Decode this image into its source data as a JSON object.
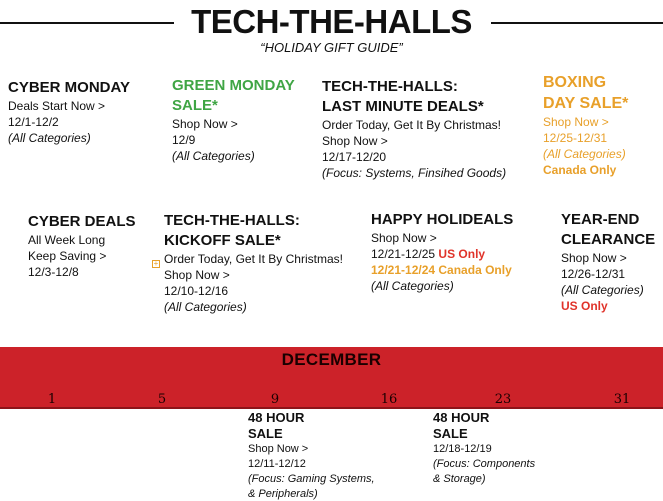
{
  "header": {
    "title": "TECH-THE-HALLS",
    "subtitle": "“HOLIDAY GIFT GUIDE”"
  },
  "colors": {
    "green": "#3fa544",
    "orange": "#e8a02a",
    "red": "#e0332a",
    "band": "#cc2229"
  },
  "promos": {
    "cyber_monday": {
      "title": "CYBER MONDAY",
      "line1": "Deals Start Now >",
      "dates": "12/1-12/2",
      "note": "(All Categories)"
    },
    "green_monday": {
      "title1": "GREEN MONDAY",
      "title2": "SALE*",
      "cta": "Shop Now >",
      "dates": "12/9",
      "note": "(All Categories)"
    },
    "last_minute": {
      "title1": "TECH-THE-HALLS:",
      "title2": "LAST MINUTE DEALS*",
      "line1": "Order Today, Get It By Christmas!",
      "cta": "Shop Now >",
      "dates": "12/17-12/20",
      "note": "(Focus: Systems, Finsihed Goods)"
    },
    "boxing_day": {
      "title1": "BOXING",
      "title2": "DAY SALE*",
      "cta": "Shop Now >",
      "dates": "12/25-12/31",
      "note": "(All Categories)",
      "region": "Canada Only"
    },
    "cyber_deals": {
      "title": "CYBER DEALS",
      "line1": "All Week Long",
      "cta": "Keep Saving >",
      "dates": "12/3-12/8"
    },
    "kickoff": {
      "title1": "TECH-THE-HALLS:",
      "title2": "KICKOFF SALE*",
      "line1": "Order Today, Get It By Christmas!",
      "cta": "Shop Now >",
      "dates": "12/10-12/16",
      "note": "(All Categories)",
      "icon": "expand-icon"
    },
    "holideals": {
      "title": "HAPPY HOLIDEALS",
      "cta": "Shop Now >",
      "dates1": "12/21-12/25",
      "region1": "US Only",
      "dates2": "12/21-12/24 Canada Only",
      "note": "(All Categories)"
    },
    "year_end": {
      "title1": "YEAR-END",
      "title2": "CLEARANCE",
      "cta": "Shop Now >",
      "dates": "12/26-12/31",
      "note": "(All Categories)",
      "region": "US Only"
    }
  },
  "timeline": {
    "month": "DECEMBER",
    "ticks": [
      "1",
      "5",
      "9",
      "16",
      "23",
      "31"
    ]
  },
  "flash_sales": [
    {
      "title1": "48 HOUR",
      "title2": "SALE",
      "cta": "Shop Now >",
      "dates": "12/11-12/12",
      "note1": "(Focus: Gaming Systems,",
      "note2": "& Peripherals)"
    },
    {
      "title1": "48 HOUR",
      "title2": "SALE",
      "dates": "12/18-12/19",
      "note1": "(Focus: Components",
      "note2": "& Storage)"
    }
  ]
}
